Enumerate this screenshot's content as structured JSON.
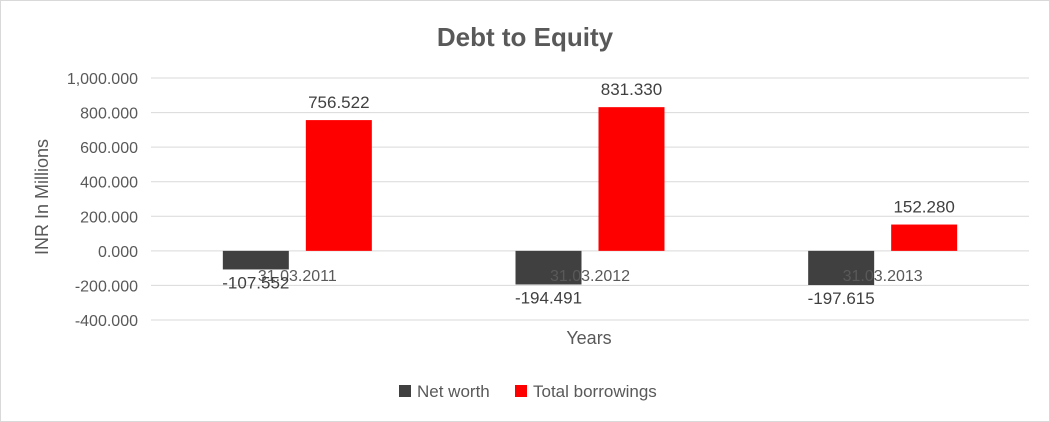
{
  "chart_data": {
    "type": "bar",
    "title": "Debt to Equity",
    "xlabel": "Years",
    "ylabel": "INR In Millions",
    "categories": [
      "31.03.2011",
      "31.03.2012",
      "31.03.2013"
    ],
    "series": [
      {
        "name": "Net worth",
        "color": "#404040",
        "values": [
          -107.552,
          -194.491,
          -197.615
        ],
        "labels": [
          "-107.552",
          "-194.491",
          "-197.615"
        ]
      },
      {
        "name": "Total borrowings",
        "color": "#ff0000",
        "values": [
          756.522,
          831.33,
          152.28
        ],
        "labels": [
          "756.522",
          "831.330",
          "152.280"
        ]
      }
    ],
    "ylim": [
      -400,
      1000
    ],
    "yticks": [
      1000,
      800,
      600,
      400,
      200,
      0,
      -200,
      -400
    ],
    "ytick_labels": [
      "1,000.000",
      "800.000",
      "600.000",
      "400.000",
      "200.000",
      "0.000",
      "-200.000",
      "-400.000"
    ],
    "grid": true,
    "legend_position": "bottom"
  }
}
